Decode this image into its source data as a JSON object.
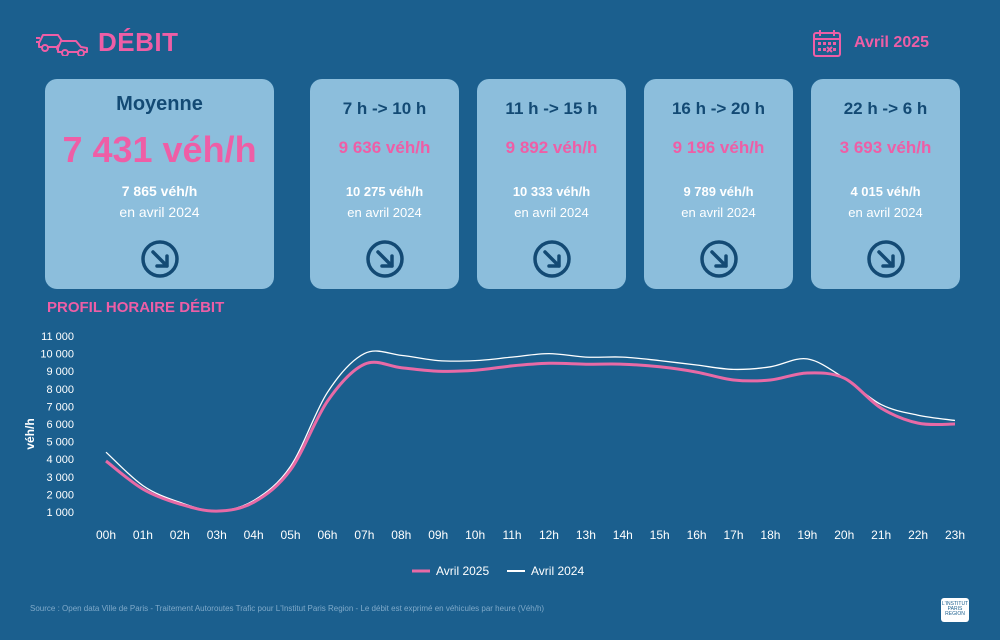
{
  "header": {
    "title": "DÉBIT",
    "icon": "traffic-cars-icon",
    "calendar_icon": "calendar-icon",
    "month": "Avril 2025"
  },
  "colors": {
    "background": "#1b5f8e",
    "card": "#8cbedc",
    "accent": "#ee5ea6",
    "card_title": "#134a74",
    "series_2025": "#e86aa6",
    "series_2024": "#ffffff"
  },
  "main_card": {
    "title": "Moyenne",
    "value": "7 431 véh/h",
    "prev_value": "7 865 véh/h",
    "prev_label": "en avril 2024",
    "trend_icon": "arrow-down-right-circle-icon"
  },
  "cards": [
    {
      "title": "7 h -> 10 h",
      "value": "9 636 véh/h",
      "prev_value": "10 275 véh/h",
      "prev_label": "en avril 2024",
      "trend_icon": "arrow-down-right-circle-icon"
    },
    {
      "title": "11 h -> 15 h",
      "value": "9 892 véh/h",
      "prev_value": "10 333 véh/h",
      "prev_label": "en avril 2024",
      "trend_icon": "arrow-down-right-circle-icon"
    },
    {
      "title": "16 h -> 20 h",
      "value": "9 196 véh/h",
      "prev_value": "9 789 véh/h",
      "prev_label": "en avril 2024",
      "trend_icon": "arrow-down-right-circle-icon"
    },
    {
      "title": "22 h -> 6 h",
      "value": "3 693 véh/h",
      "prev_value": "4 015 véh/h",
      "prev_label": "en avril 2024",
      "trend_icon": "arrow-down-right-circle-icon"
    }
  ],
  "chart_title": "PROFIL HORAIRE DÉBIT",
  "chart_data": {
    "type": "line",
    "title": "PROFIL HORAIRE DÉBIT",
    "xlabel": "",
    "ylabel": "véh/h",
    "x": [
      "00h",
      "01h",
      "02h",
      "03h",
      "04h",
      "05h",
      "06h",
      "07h",
      "08h",
      "09h",
      "10h",
      "11h",
      "12h",
      "13h",
      "14h",
      "15h",
      "16h",
      "17h",
      "18h",
      "19h",
      "20h",
      "21h",
      "22h",
      "23h"
    ],
    "ylim": [
      0,
      11000
    ],
    "yticks": [
      1000,
      2000,
      3000,
      4000,
      5000,
      6000,
      7000,
      8000,
      9000,
      10000,
      11000
    ],
    "ytick_labels": [
      "1 000",
      "2 000",
      "3 000",
      "4 000",
      "5 000",
      "6 000",
      "7 000",
      "8 000",
      "9 000",
      "10 000",
      "11 000"
    ],
    "grid": false,
    "legend_position": "bottom-center",
    "series": [
      {
        "name": "Avril 2025",
        "color": "#e86aa6",
        "values": [
          3900,
          2300,
          1450,
          1050,
          1550,
          3400,
          7300,
          9400,
          9200,
          9000,
          9050,
          9300,
          9450,
          9400,
          9400,
          9250,
          8950,
          8500,
          8500,
          8900,
          8600,
          6900,
          6050,
          6000
        ]
      },
      {
        "name": "Avril 2024",
        "color": "#ffffff",
        "values": [
          4400,
          2500,
          1550,
          1050,
          1650,
          3600,
          7800,
          10000,
          9900,
          9600,
          9600,
          9800,
          10000,
          9800,
          9800,
          9600,
          9350,
          9100,
          9250,
          9700,
          8600,
          7100,
          6500,
          6200
        ]
      }
    ]
  },
  "source": "Source : Open data Ville de Paris - Traitement Autoroutes Trafic pour L'Institut Paris Region - Le débit est exprimé en véhicules par heure (Véh/h)",
  "logo": {
    "line1": "L'INSTITUT",
    "line2": "PARIS",
    "line3": "REGION"
  }
}
